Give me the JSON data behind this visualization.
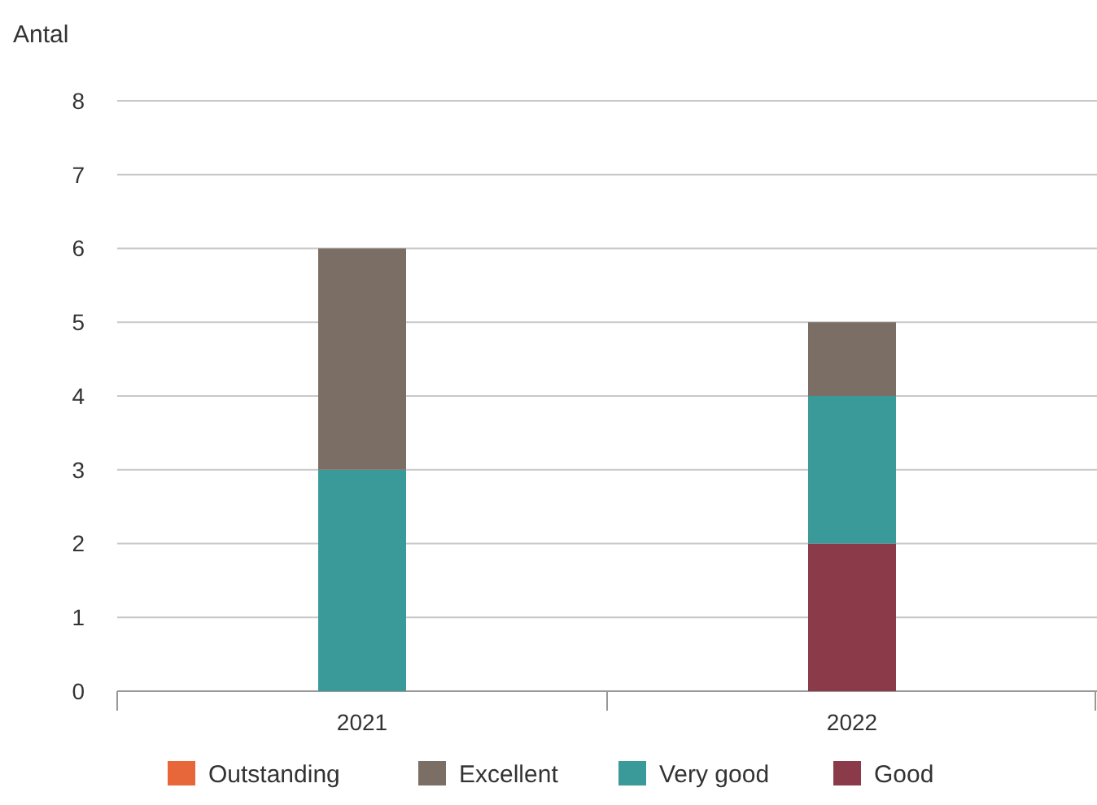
{
  "chart_data": {
    "type": "bar",
    "ylabel": "Antal",
    "categories": [
      "2021",
      "2022"
    ],
    "stacked": true,
    "series": [
      {
        "name": "Good",
        "color": "#8b3a4a",
        "values": [
          0,
          2
        ]
      },
      {
        "name": "Very good",
        "color": "#3a9a9a",
        "values": [
          3,
          2
        ]
      },
      {
        "name": "Excellent",
        "color": "#7b6e64",
        "values": [
          3,
          1
        ]
      },
      {
        "name": "Outstanding",
        "color": "#e8673a",
        "values": [
          0,
          0
        ]
      }
    ],
    "ylim": [
      0,
      8
    ],
    "yticks": [
      0,
      1,
      2,
      3,
      4,
      5,
      6,
      7,
      8
    ],
    "grid": "y",
    "legend": "bottom"
  }
}
